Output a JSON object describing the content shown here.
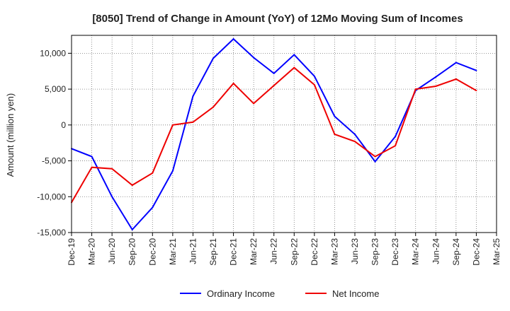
{
  "chart_data": {
    "type": "line",
    "title": "[8050]  Trend of Change in Amount (YoY) of 12Mo Moving Sum of Incomes",
    "xlabel": "",
    "ylabel": "Amount (million yen)",
    "categories": [
      "Dec-19",
      "Mar-20",
      "Jun-20",
      "Sep-20",
      "Dec-20",
      "Mar-21",
      "Jun-21",
      "Sep-21",
      "Dec-21",
      "Mar-22",
      "Jun-22",
      "Sep-22",
      "Dec-22",
      "Mar-23",
      "Jun-23",
      "Sep-23",
      "Dec-23",
      "Mar-24",
      "Jun-24",
      "Sep-24",
      "Dec-24",
      "Mar-25"
    ],
    "ylim": [
      -15000,
      12500
    ],
    "yticks": [
      -15000,
      -10000,
      -5000,
      0,
      5000,
      10000
    ],
    "ytick_labels": [
      "-15,000",
      "-10,000",
      "-5,000",
      "0",
      "5,000",
      "10,000"
    ],
    "grid": true,
    "legend_position": "bottom",
    "series": [
      {
        "name": "Ordinary Income",
        "color": "#0000ff",
        "values": [
          -3300,
          -4400,
          -10000,
          -14600,
          -11500,
          -6400,
          4000,
          9300,
          12000,
          9400,
          7200,
          9800,
          6800,
          1200,
          -1300,
          -5100,
          -1600,
          4800,
          6700,
          8700,
          7600,
          null
        ]
      },
      {
        "name": "Net Income",
        "color": "#ee0000",
        "values": [
          -10800,
          -5900,
          -6100,
          -8400,
          -6700,
          0,
          400,
          2500,
          5800,
          3000,
          5500,
          8000,
          5600,
          -1300,
          -2300,
          -4400,
          -2900,
          5000,
          5400,
          6400,
          4800,
          null
        ]
      }
    ]
  }
}
